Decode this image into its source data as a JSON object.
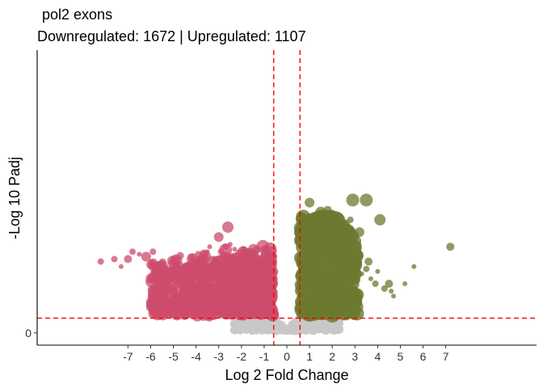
{
  "chart_data": {
    "type": "scatter",
    "title": "pol2 exons",
    "subtitle": "Downregulated: 1672 | Upregulated: 1107",
    "xlabel": "Log 2 Fold Change",
    "ylabel": "-Log 10 Padj",
    "x_ticks": [
      "-7",
      "-6",
      "-5",
      "-4",
      "-3",
      "-2",
      "-1",
      "0",
      "1",
      "2",
      "3",
      "4",
      "5",
      "6",
      "7"
    ],
    "y_ticks": [
      "0"
    ],
    "xlim": [
      -11,
      11
    ],
    "ylim": [
      -0.5,
      11.5
    ],
    "thresholds": {
      "x": [
        -0.58,
        0.58
      ],
      "y": 0.6
    },
    "grid": false,
    "colors": {
      "down": "#cc4c6c",
      "up": "#6b7a2f",
      "ns": "#c8c8c8",
      "threshold": "#ff0000"
    },
    "series": [
      {
        "key": "down",
        "points": [
          [
            -8.2,
            2.9,
            4
          ],
          [
            -7.6,
            3.0,
            4
          ],
          [
            -7.3,
            2.7,
            3
          ],
          [
            -7.0,
            3.0,
            5
          ],
          [
            -6.8,
            3.3,
            4
          ],
          [
            -6.5,
            3.2,
            3
          ],
          [
            -6.2,
            3.1,
            6
          ],
          [
            -5.9,
            3.3,
            4
          ],
          [
            -5.7,
            2.4,
            3
          ],
          [
            -5.5,
            2.1,
            3
          ],
          [
            -5.2,
            2.3,
            3
          ],
          [
            -4.9,
            2.9,
            3
          ],
          [
            -4.7,
            2.6,
            3
          ],
          [
            -4.5,
            2.5,
            5
          ],
          [
            -4.2,
            3.1,
            4
          ],
          [
            -4.0,
            2.8,
            3
          ],
          [
            -3.9,
            3.2,
            4
          ],
          [
            -3.8,
            2.7,
            3
          ],
          [
            -3.6,
            3.1,
            4
          ],
          [
            -3.5,
            3.3,
            3
          ],
          [
            -3.4,
            3.5,
            3
          ],
          [
            -3.2,
            3.0,
            3
          ],
          [
            -3.1,
            2.8,
            4
          ],
          [
            -3.0,
            3.9,
            6
          ],
          [
            -2.9,
            3.3,
            4
          ],
          [
            -2.8,
            3.2,
            3
          ],
          [
            -2.6,
            3.0,
            5
          ],
          [
            -2.7,
            3.5,
            4
          ],
          [
            -2.5,
            3.6,
            3
          ],
          [
            -2.3,
            3.4,
            3
          ],
          [
            -2.6,
            4.3,
            7
          ],
          [
            -2.1,
            2.5,
            3
          ],
          [
            -1.9,
            3.4,
            4
          ],
          [
            -1.6,
            3.3,
            4
          ],
          [
            -1.4,
            3.0,
            3
          ],
          [
            -1.0,
            2.8,
            3
          ],
          [
            -1.2,
            2.5,
            3
          ],
          [
            -0.9,
            2.7,
            3
          ],
          [
            -4.0,
            1.0,
            3
          ],
          [
            -3.3,
            1.1,
            3
          ],
          [
            -3.5,
            0.9,
            3
          ]
        ]
      },
      {
        "key": "up",
        "points": [
          [
            1.0,
            5.3,
            6
          ],
          [
            1.3,
            4.4,
            6
          ],
          [
            1.5,
            4.9,
            7
          ],
          [
            1.8,
            5.0,
            5
          ],
          [
            2.0,
            4.8,
            6
          ],
          [
            1.7,
            4.7,
            6
          ],
          [
            2.1,
            4.4,
            5
          ],
          [
            2.2,
            4.1,
            5
          ],
          [
            2.5,
            4.3,
            4
          ],
          [
            2.8,
            4.6,
            4
          ],
          [
            2.2,
            3.8,
            6
          ],
          [
            2.0,
            3.6,
            5
          ],
          [
            2.6,
            3.4,
            4
          ],
          [
            2.8,
            2.9,
            5
          ],
          [
            3.0,
            2.7,
            6
          ],
          [
            3.3,
            2.4,
            3
          ],
          [
            3.5,
            2.6,
            4
          ],
          [
            3.7,
            2.2,
            3
          ],
          [
            3.9,
            2.0,
            4
          ],
          [
            3.6,
            2.9,
            5
          ],
          [
            4.0,
            2.5,
            3
          ],
          [
            4.3,
            1.8,
            4
          ],
          [
            4.6,
            1.7,
            3
          ],
          [
            4.7,
            1.5,
            3
          ],
          [
            4.5,
            2.0,
            5
          ],
          [
            5.2,
            2.0,
            3
          ],
          [
            5.6,
            2.7,
            3
          ],
          [
            7.2,
            3.5,
            5
          ],
          [
            2.9,
            5.4,
            8
          ],
          [
            3.5,
            5.4,
            8
          ],
          [
            4.1,
            4.6,
            7
          ],
          [
            1.4,
            3.7,
            5
          ],
          [
            0.8,
            2.6,
            4
          ],
          [
            3.2,
            4.1,
            6
          ]
        ]
      }
    ]
  }
}
